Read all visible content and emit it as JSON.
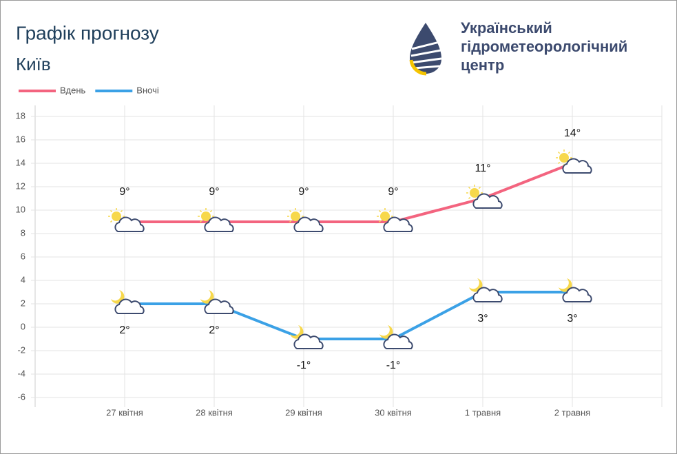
{
  "chart_data": {
    "type": "line",
    "title": "Графік прогнозу",
    "subtitle": "Київ",
    "categories": [
      "27 квітня",
      "28 квітня",
      "29 квітня",
      "30 квітня",
      "1 травня",
      "2 травня"
    ],
    "series": [
      {
        "name": "Вдень",
        "color": "#f3647f",
        "values": [
          9,
          9,
          9,
          9,
          11,
          14
        ],
        "value_labels": [
          "9°",
          "9°",
          "9°",
          "9°",
          "11°",
          "14°"
        ]
      },
      {
        "name": "Вночі",
        "color": "#3ba1e6",
        "values": [
          2,
          2,
          -1,
          -1,
          3,
          3
        ],
        "value_labels": [
          "2°",
          "2°",
          "-1°",
          "-1°",
          "3°",
          "3°"
        ]
      }
    ],
    "ylim": [
      -6,
      18
    ],
    "yticks": [
      -6,
      -4,
      -2,
      0,
      2,
      4,
      6,
      8,
      10,
      12,
      14,
      16,
      18
    ],
    "grid": true,
    "legend": "top-left"
  },
  "logo": {
    "lines": [
      "Український",
      "гідрометеорологічний",
      "центр"
    ]
  }
}
